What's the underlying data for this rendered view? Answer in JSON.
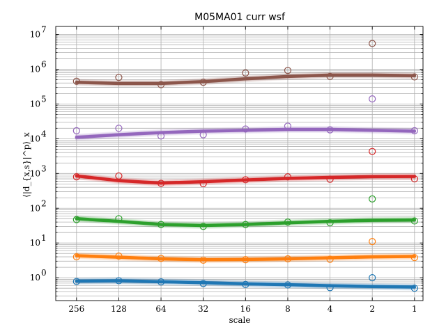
{
  "chart_data": {
    "type": "line",
    "title": "M05MA01 curr wsf",
    "xlabel": "scale",
    "ylabel": "⟨|d_{x,s}|^p⟩_x",
    "x_scale": "log2",
    "x_reversed": true,
    "x_ticks": [
      256,
      128,
      64,
      32,
      16,
      8,
      4,
      2,
      1
    ],
    "x_tick_labels": [
      "256",
      "128",
      "64",
      "32",
      "16",
      "8",
      "4",
      "2",
      "1"
    ],
    "xlim": [
      360,
      0.87
    ],
    "y_scale": "log10",
    "y_ticks": [
      1,
      10,
      100,
      1000,
      10000,
      100000,
      1000000,
      10000000
    ],
    "y_tick_labels": [
      {
        "base": "10",
        "exp": "0"
      },
      {
        "base": "10",
        "exp": "1"
      },
      {
        "base": "10",
        "exp": "2"
      },
      {
        "base": "10",
        "exp": "3"
      },
      {
        "base": "10",
        "exp": "4"
      },
      {
        "base": "10",
        "exp": "5"
      },
      {
        "base": "10",
        "exp": "6"
      },
      {
        "base": "10",
        "exp": "7"
      }
    ],
    "ylim": [
      0.22,
      17000000
    ],
    "grid": true,
    "series": [
      {
        "color": "#1f77b4",
        "points": [
          [
            256,
            0.78
          ],
          [
            128,
            0.82
          ],
          [
            64,
            0.76
          ],
          [
            32,
            0.68
          ],
          [
            16,
            0.64
          ],
          [
            8,
            0.62
          ],
          [
            4,
            0.52
          ],
          [
            2,
            1.0
          ],
          [
            1,
            0.5
          ]
        ],
        "fit": [
          [
            256,
            0.8
          ],
          [
            128,
            0.82
          ],
          [
            64,
            0.77
          ],
          [
            32,
            0.72
          ],
          [
            16,
            0.67
          ],
          [
            8,
            0.63
          ],
          [
            4,
            0.59
          ],
          [
            2,
            0.56
          ],
          [
            1,
            0.54
          ]
        ]
      },
      {
        "color": "#ff7f0e",
        "points": [
          [
            256,
            4.0
          ],
          [
            128,
            4.2
          ],
          [
            64,
            3.6
          ],
          [
            32,
            3.2
          ],
          [
            16,
            3.3
          ],
          [
            8,
            3.5
          ],
          [
            4,
            3.4
          ],
          [
            2,
            11
          ],
          [
            1,
            3.8
          ]
        ],
        "fit": [
          [
            256,
            4.3
          ],
          [
            128,
            3.9
          ],
          [
            64,
            3.5
          ],
          [
            32,
            3.3
          ],
          [
            16,
            3.35
          ],
          [
            8,
            3.5
          ],
          [
            4,
            3.75
          ],
          [
            2,
            4.0
          ],
          [
            1,
            4.1
          ]
        ]
      },
      {
        "color": "#2ca02c",
        "points": [
          [
            256,
            47
          ],
          [
            128,
            50
          ],
          [
            64,
            34
          ],
          [
            32,
            30
          ],
          [
            16,
            34
          ],
          [
            8,
            40
          ],
          [
            4,
            38
          ],
          [
            2,
            185
          ],
          [
            1,
            43
          ]
        ],
        "fit": [
          [
            256,
            50
          ],
          [
            128,
            42
          ],
          [
            64,
            34
          ],
          [
            32,
            32
          ],
          [
            16,
            34
          ],
          [
            8,
            38
          ],
          [
            4,
            42
          ],
          [
            2,
            45
          ],
          [
            1,
            46
          ]
        ]
      },
      {
        "color": "#d62728",
        "points": [
          [
            256,
            800
          ],
          [
            128,
            850
          ],
          [
            64,
            520
          ],
          [
            32,
            510
          ],
          [
            16,
            660
          ],
          [
            8,
            800
          ],
          [
            4,
            680
          ],
          [
            2,
            4300
          ],
          [
            1,
            700
          ]
        ],
        "fit": [
          [
            256,
            850
          ],
          [
            128,
            620
          ],
          [
            64,
            530
          ],
          [
            32,
            580
          ],
          [
            16,
            650
          ],
          [
            8,
            720
          ],
          [
            4,
            770
          ],
          [
            2,
            810
          ],
          [
            1,
            820
          ]
        ]
      },
      {
        "color": "#9467bd",
        "points": [
          [
            256,
            17000
          ],
          [
            128,
            20000
          ],
          [
            64,
            12000
          ],
          [
            32,
            13000
          ],
          [
            16,
            19000
          ],
          [
            8,
            23000
          ],
          [
            4,
            18000
          ],
          [
            2,
            140000
          ],
          [
            1,
            17000
          ]
        ],
        "fit": [
          [
            256,
            11000
          ],
          [
            128,
            13000
          ],
          [
            64,
            15000
          ],
          [
            32,
            16500
          ],
          [
            16,
            17500
          ],
          [
            8,
            18500
          ],
          [
            4,
            18500
          ],
          [
            2,
            17500
          ],
          [
            1,
            16500
          ]
        ]
      },
      {
        "color": "#8c564b",
        "points": [
          [
            256,
            450000
          ],
          [
            128,
            580000
          ],
          [
            64,
            360000
          ],
          [
            32,
            420000
          ],
          [
            16,
            780000
          ],
          [
            8,
            920000
          ],
          [
            4,
            620000
          ],
          [
            2,
            5500000
          ],
          [
            1,
            600000
          ]
        ],
        "fit": [
          [
            256,
            420000
          ],
          [
            128,
            390000
          ],
          [
            64,
            390000
          ],
          [
            32,
            440000
          ],
          [
            16,
            530000
          ],
          [
            8,
            620000
          ],
          [
            4,
            680000
          ],
          [
            2,
            680000
          ],
          [
            1,
            650000
          ]
        ]
      }
    ]
  }
}
